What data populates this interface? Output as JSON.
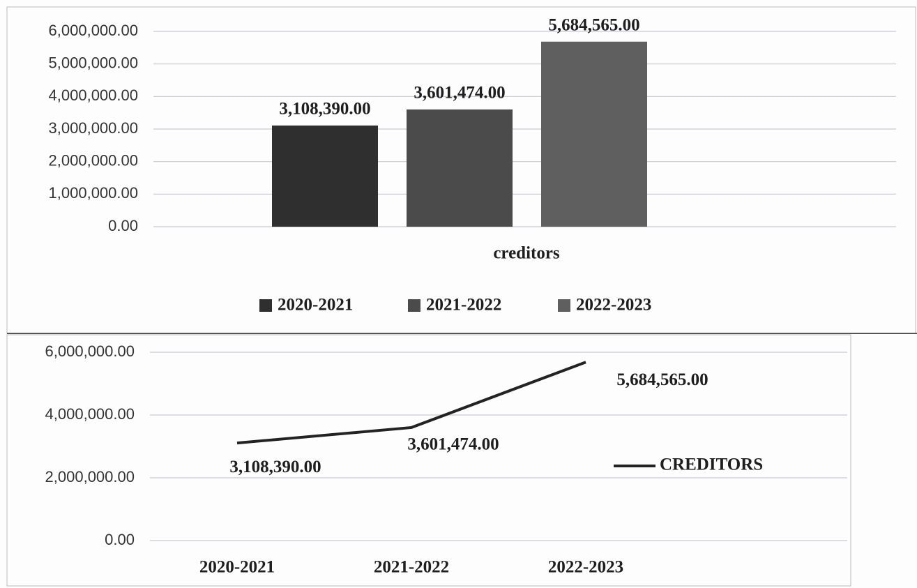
{
  "chart_data": [
    {
      "type": "bar",
      "categories": [
        "creditors"
      ],
      "series": [
        {
          "name": "2020-2021",
          "color": "#2f2f2f",
          "values": [
            3108390
          ],
          "value_labels": [
            "3,108,390.00"
          ]
        },
        {
          "name": "2021-2022",
          "color": "#4b4b4b",
          "values": [
            3601474
          ],
          "value_labels": [
            "3,601,474.00"
          ]
        },
        {
          "name": "2022-2023",
          "color": "#5f5f5f",
          "values": [
            5684565
          ],
          "value_labels": [
            "5,684,565.00"
          ]
        }
      ],
      "ylim": [
        0,
        6000000
      ],
      "yticks": [
        {
          "value": 0,
          "label": "0.00"
        },
        {
          "value": 1000000,
          "label": "1,000,000.00"
        },
        {
          "value": 2000000,
          "label": "2,000,000.00"
        },
        {
          "value": 3000000,
          "label": "3,000,000.00"
        },
        {
          "value": 4000000,
          "label": "4,000,000.00"
        },
        {
          "value": 5000000,
          "label": "5,000,000.00"
        },
        {
          "value": 6000000,
          "label": "6,000,000.00"
        }
      ],
      "grid": true,
      "legend": "bottom"
    },
    {
      "type": "line",
      "categories": [
        "2020-2021",
        "2021-2022",
        "2022-2023"
      ],
      "series": [
        {
          "name": "CREDITORS",
          "color": "#232323",
          "values": [
            3108390,
            3601474,
            5684565
          ],
          "value_labels": [
            "3,108,390.00",
            "3,601,474.00",
            "5,684,565.00"
          ]
        }
      ],
      "ylim": [
        0,
        6000000
      ],
      "yticks": [
        {
          "value": 0,
          "label": "0.00"
        },
        {
          "value": 2000000,
          "label": "2,000,000.00"
        },
        {
          "value": 4000000,
          "label": "4,000,000.00"
        },
        {
          "value": 6000000,
          "label": "6,000,000.00"
        }
      ],
      "grid": true,
      "legend": "right"
    }
  ]
}
